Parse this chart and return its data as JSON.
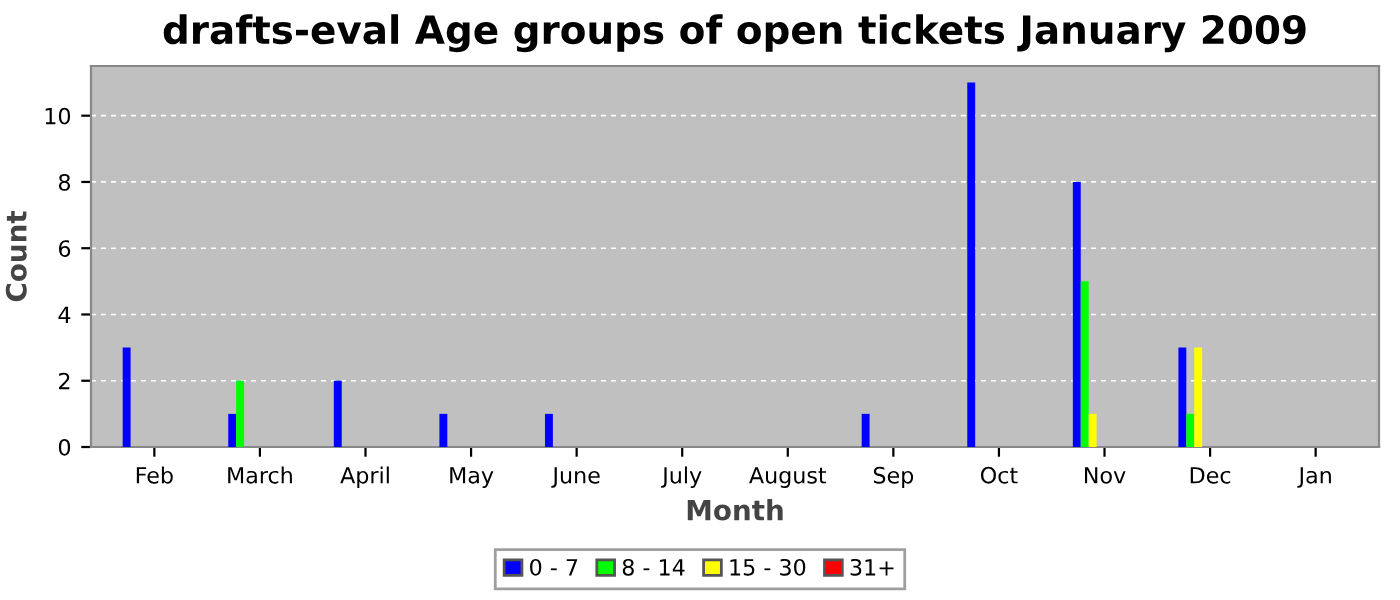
{
  "chart_data": {
    "type": "bar",
    "title": "drafts-eval Age groups of open tickets January 2009",
    "xlabel": "Month",
    "ylabel": "Count",
    "categories": [
      "Feb",
      "March",
      "April",
      "May",
      "June",
      "July",
      "August",
      "Sep",
      "Oct",
      "Nov",
      "Dec",
      "Jan"
    ],
    "series": [
      {
        "name": "0 - 7",
        "color": "#0000ff",
        "values": [
          3,
          1,
          2,
          1,
          1,
          0,
          0,
          1,
          11,
          8,
          3,
          0
        ]
      },
      {
        "name": "8 - 14",
        "color": "#00ff00",
        "values": [
          0,
          2,
          0,
          0,
          0,
          0,
          0,
          0,
          0,
          5,
          1,
          0
        ]
      },
      {
        "name": "15 - 30",
        "color": "#ffff00",
        "values": [
          0,
          0,
          0,
          0,
          0,
          0,
          0,
          0,
          0,
          1,
          3,
          0
        ]
      },
      {
        "name": "31+",
        "color": "#ff0000",
        "values": [
          0,
          0,
          0,
          0,
          0,
          0,
          0,
          0,
          0,
          0,
          0,
          0
        ]
      }
    ],
    "ylim": [
      0,
      11.5
    ],
    "yticks": [
      0,
      2,
      4,
      6,
      8,
      10
    ],
    "grid": "y",
    "legend": "bottom"
  }
}
